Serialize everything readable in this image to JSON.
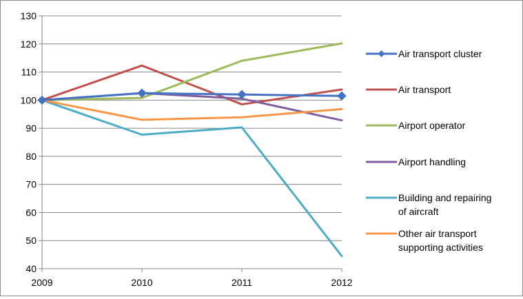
{
  "chart_data": {
    "type": "line",
    "categories": [
      "2009",
      "2010",
      "2011",
      "2012"
    ],
    "ylim": [
      40,
      130
    ],
    "yticks": [
      40,
      50,
      60,
      70,
      80,
      90,
      100,
      110,
      120,
      130
    ],
    "grid": true,
    "legend_position": "right",
    "series": [
      {
        "name": "Air transport cluster",
        "color": "#4472c4",
        "marker": "diamond",
        "values": [
          100,
          102.5,
          102,
          101.5
        ]
      },
      {
        "name": "Air transport",
        "color": "#c0504d",
        "marker": "none",
        "values": [
          100,
          112.3,
          98.5,
          103.8
        ]
      },
      {
        "name": "Airport operator",
        "color": "#9bbb59",
        "marker": "none",
        "values": [
          100,
          100.8,
          114,
          120.2
        ]
      },
      {
        "name": "Airport handling",
        "color": "#7f5ea0",
        "marker": "none",
        "values": [
          100,
          102.5,
          100.5,
          92.8
        ]
      },
      {
        "name": "Building and repairing of aircraft",
        "color": "#4bacc6",
        "marker": "none",
        "values": [
          100,
          87.7,
          90.3,
          44.5
        ]
      },
      {
        "name": "Other air transport supporting activities",
        "color": "#f79646",
        "marker": "none",
        "values": [
          100,
          93,
          93.9,
          96.8
        ]
      }
    ]
  }
}
